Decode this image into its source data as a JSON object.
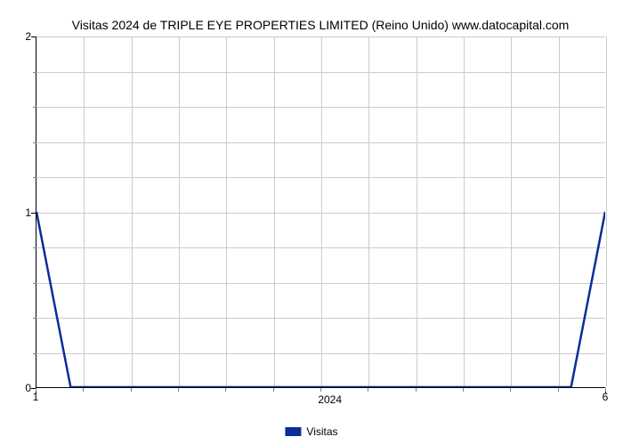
{
  "chart": {
    "type": "line",
    "title": "Visitas 2024 de TRIPLE EYE PROPERTIES LIMITED (Reino Unido) www.datocapital.com",
    "title_fontsize": 14,
    "title_color": "#000000",
    "background_color": "#ffffff",
    "grid_color": "#cccccc",
    "axis_color": "#000000",
    "line_color": "#0b2c9b",
    "line_width": 2.5,
    "xlim": [
      1,
      6
    ],
    "ylim": [
      0,
      2
    ],
    "x_major_ticks": [
      1,
      6
    ],
    "x_minor_tick_count": 12,
    "y_major_ticks": [
      0,
      1,
      2
    ],
    "y_minor_tick_count": 10,
    "x_center_label": "2024",
    "h_gridlines": 10,
    "v_gridlines": 12,
    "series": {
      "name": "Visitas",
      "x": [
        1,
        1.3,
        5.7,
        6
      ],
      "y": [
        1,
        0,
        0,
        1
      ]
    },
    "legend": {
      "label": "Visitas",
      "swatch_color": "#0b2c9b",
      "fontsize": 12
    },
    "tick_fontsize": 12
  }
}
